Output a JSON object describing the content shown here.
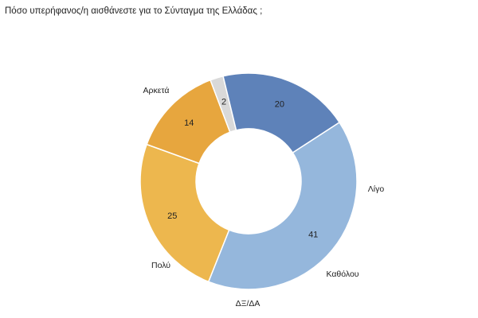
{
  "chart_data": {
    "type": "pie",
    "title": "Πόσο υπερήφανος/η αισθάνεστε για το Σύνταγμα της Ελλάδας ;",
    "donut": true,
    "legend": "none",
    "slices": [
      {
        "label": "Αρκετά",
        "value": 41,
        "color": "#95B7DC"
      },
      {
        "label": "Λίγο",
        "value": 25,
        "color": "#EDB74E"
      },
      {
        "label": "Καθόλου",
        "value": 14,
        "color": "#E7A63E"
      },
      {
        "label": "ΔΞ/ΔΑ",
        "value": 2,
        "color": "#D9D9D9"
      },
      {
        "label": "Πολύ",
        "value": 20,
        "color": "#5E82B9"
      }
    ]
  }
}
